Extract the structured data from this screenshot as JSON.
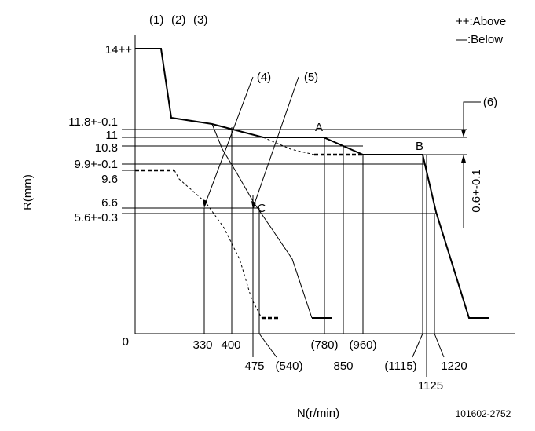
{
  "top_labels": [
    "(1)",
    "(2)",
    "(3)"
  ],
  "legend": {
    "above": "++:Above",
    "below": "—:Below"
  },
  "y_labels": [
    "14++",
    "11.8+-0.1",
    "11",
    "10.8",
    "9.9+-0.1",
    "9.6",
    "6.6",
    "5.6+-0.3",
    "0"
  ],
  "x_labels": [
    "330",
    "400",
    "475",
    "(540)",
    "(780)",
    "850",
    "(960)",
    "(1115)",
    "1125",
    "1220"
  ],
  "callouts": [
    "(4)",
    "(5)",
    "(6)"
  ],
  "points": [
    "A",
    "B",
    "C"
  ],
  "gap_label": "0.6+-0.1",
  "y_title": "R(mm)",
  "x_title": "N(r/min)",
  "code": "101602-2752"
}
